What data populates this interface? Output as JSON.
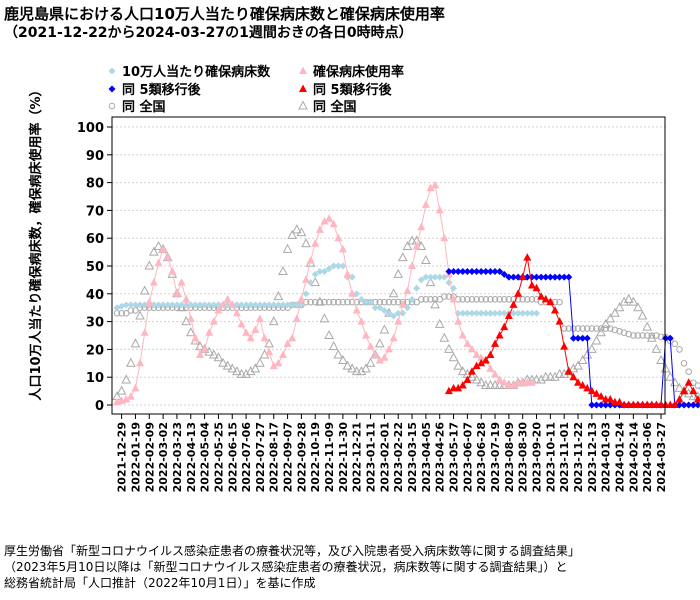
{
  "title_line1": "鹿児島県における人口10万人当たり確保病床数と確保病床使用率",
  "title_line2": "（2021-12-22から2024-03-27の1週間おきの各日0時時点）",
  "source_lines": [
    "厚生労働省「新型コロナウイルス感染症患者の療養状況等，及び入院患者受入病床数等に関する調査結果」",
    "（2023年5月10日以降は「新型コロナウイルス感染症患者の療養状況，病床数等に関する調査結果」）と",
    "総務省統計局「人口推計（2022年10月1日）」を基に作成"
  ],
  "colors": {
    "beds_pre": "#add8e6",
    "beds_post": "#0000ff",
    "usage_pre": "#ffb6c1",
    "usage_post": "#ff0000",
    "national": "#a9a9a9",
    "grid": "#d3d3d3"
  },
  "chart_data": {
    "type": "scatter",
    "ylabel": "人口10万人当たり確保病床数，確保病床使用率（%）",
    "ylim": [
      0,
      100
    ],
    "yticks": [
      0,
      10,
      20,
      30,
      40,
      50,
      60,
      70,
      80,
      90,
      100
    ],
    "x_start": "2021-12-22",
    "x_step_days": 7,
    "x_end": "2024-03-27",
    "tick_labels": [
      "2021-12-29",
      "2022-01-19",
      "2022-02-09",
      "2022-03-02",
      "2022-03-23",
      "2022-04-13",
      "2022-05-04",
      "2022-05-25",
      "2022-06-15",
      "2022-07-06",
      "2022-07-27",
      "2022-08-17",
      "2022-09-07",
      "2022-09-28",
      "2022-10-19",
      "2022-11-09",
      "2022-11-30",
      "2022-12-21",
      "2023-01-11",
      "2023-02-01",
      "2023-02-22",
      "2023-03-15",
      "2023-04-05",
      "2023-04-26",
      "2023-05-17",
      "2023-06-07",
      "2023-06-28",
      "2023-07-19",
      "2023-08-09",
      "2023-08-30",
      "2023-09-20",
      "2023-10-11",
      "2023-11-01",
      "2023-11-22",
      "2023-12-13",
      "2024-01-03",
      "2024-01-24",
      "2024-02-14",
      "2024-03-06",
      "2024-03-27"
    ],
    "grid": "horizontal dotted",
    "legend_position": "top-left",
    "legend": [
      {
        "label": "10万人当たり確保病床数",
        "marker": "diamond",
        "color": "#add8e6"
      },
      {
        "label": "同 5類移行後",
        "marker": "diamond",
        "color": "#0000ff"
      },
      {
        "label": "同 全国",
        "marker": "circle-open",
        "color": "#a9a9a9"
      },
      {
        "label": "確保病床使用率",
        "marker": "triangle",
        "color": "#ffb6c1"
      },
      {
        "label": "同 5類移行後",
        "marker": "triangle",
        "color": "#ff0000"
      },
      {
        "label": "同 全国",
        "marker": "triangle-open",
        "color": "#a9a9a9"
      }
    ],
    "series": [
      {
        "name": "10万人当たり確保病床数",
        "x_start": "2021-12-22",
        "values": [
          35,
          35.5,
          36,
          36,
          36,
          36,
          36,
          36,
          36,
          36,
          36,
          36,
          36,
          36,
          36,
          36,
          36,
          36,
          36,
          36,
          36,
          36,
          36,
          36,
          36,
          36,
          36,
          36,
          36,
          36,
          36,
          36,
          36,
          36,
          36,
          36,
          36,
          36,
          36,
          36,
          36,
          40,
          44,
          47,
          48,
          48,
          49,
          50,
          50,
          50,
          46,
          46,
          40,
          38,
          37,
          37,
          35,
          35,
          34,
          33,
          32,
          33,
          33,
          35,
          38,
          42,
          45,
          46,
          46,
          46,
          46,
          46,
          44,
          42,
          33,
          33,
          33,
          33,
          33,
          33,
          33,
          33,
          33,
          33,
          33,
          33,
          33,
          33,
          33,
          33,
          33,
          33
        ]
      },
      {
        "name": "同 5類移行後",
        "x_start": "2023-05-10",
        "values": [
          48,
          48,
          48,
          48,
          48,
          48,
          48,
          48,
          48,
          48,
          48,
          48,
          47,
          46,
          46,
          46,
          46,
          46,
          46,
          46,
          46,
          46,
          46,
          46,
          46,
          46,
          46,
          24,
          24,
          24,
          24,
          0,
          0,
          0,
          0,
          0,
          0,
          0,
          0,
          0,
          0,
          0,
          0,
          0,
          0,
          0,
          0,
          24,
          24,
          0,
          0,
          0,
          0,
          0,
          0,
          0,
          0,
          0,
          0
        ]
      },
      {
        "name": "同 全国",
        "x_start": "2021-12-22",
        "values": [
          33,
          33,
          33,
          34,
          34,
          35,
          35,
          35,
          35,
          35,
          35,
          35,
          35,
          35,
          35,
          35,
          35,
          35,
          35,
          35,
          35,
          35,
          35,
          35,
          35,
          35,
          35,
          35,
          35,
          35,
          35,
          35,
          35,
          35,
          35,
          35,
          35,
          35,
          36,
          36,
          36,
          37,
          37,
          37,
          37,
          37,
          37,
          37,
          37,
          37,
          37,
          37,
          37,
          37,
          37,
          37,
          37,
          37,
          37,
          37,
          37,
          37,
          37,
          37,
          37,
          37,
          38,
          38,
          38,
          38,
          38,
          39,
          39,
          39,
          38,
          38,
          38,
          38,
          38,
          38,
          38,
          38,
          38,
          38,
          38,
          38,
          38,
          38,
          38,
          38,
          38,
          38,
          37,
          37,
          37,
          37,
          37,
          27.5,
          27.5,
          27.5,
          27.5,
          27.5,
          27.5,
          27.5,
          27.5,
          27.5,
          27.5,
          27.5,
          27,
          26.5,
          26,
          25.5,
          25,
          25,
          25,
          25,
          25,
          25,
          24.5,
          24.5,
          23,
          22,
          20,
          15,
          12,
          8,
          7,
          6,
          5,
          5,
          4,
          4,
          4,
          4,
          4,
          4,
          5,
          8,
          12,
          16,
          16,
          15,
          13,
          12,
          10,
          8,
          7,
          5,
          5,
          4,
          4,
          4
        ]
      },
      {
        "name": "確保病床使用率",
        "x_start": "2021-12-22",
        "values": [
          1,
          1.5,
          2,
          3,
          6,
          15,
          26,
          37,
          44,
          51,
          56,
          53,
          48,
          40,
          44,
          38,
          31,
          24,
          18,
          20,
          26,
          30,
          34,
          36,
          38,
          36,
          33,
          29,
          26,
          24,
          27,
          31,
          24,
          19,
          14,
          15,
          18,
          22,
          24,
          31,
          38,
          45,
          52,
          58,
          63,
          66,
          67,
          65,
          60,
          56,
          47,
          40,
          34,
          30,
          25,
          21,
          18,
          16,
          17,
          20,
          24,
          30,
          36,
          41,
          50,
          57,
          64,
          72,
          78,
          79,
          70,
          60,
          47,
          38,
          30,
          25,
          22,
          20,
          18,
          17,
          16,
          13,
          11,
          9,
          8,
          7,
          7,
          8,
          8,
          8,
          8
        ]
      },
      {
        "name": "同 5類移行後",
        "x_start": "2023-05-10",
        "values": [
          5,
          6,
          6,
          7,
          9,
          12,
          14,
          15,
          16,
          18,
          22,
          25,
          28,
          32,
          36,
          40,
          46,
          53,
          43,
          42,
          39,
          38,
          37,
          34,
          30,
          21,
          12,
          10,
          8,
          7,
          6,
          5,
          4,
          3,
          2,
          2,
          1,
          1,
          0,
          0,
          0,
          0,
          0,
          0,
          0,
          0,
          0,
          0,
          0,
          0,
          2,
          5,
          8,
          5,
          2,
          1,
          1,
          0,
          0
        ]
      },
      {
        "name": "同 全国",
        "x_start": "2021-12-22",
        "values": [
          3,
          5,
          9,
          15,
          22,
          32,
          41,
          50,
          55,
          57,
          56,
          53,
          47,
          40,
          35,
          30,
          26,
          23,
          21,
          20,
          19,
          18,
          17,
          15,
          14,
          13,
          12,
          11,
          11,
          12,
          13,
          15,
          18,
          22,
          30,
          39,
          48,
          56,
          61,
          63,
          62,
          58,
          51,
          44,
          37,
          31,
          25,
          21,
          18,
          16,
          14,
          13,
          12,
          12,
          13,
          15,
          18,
          22,
          27,
          33,
          40,
          47,
          53,
          57,
          59,
          59,
          57,
          52,
          44,
          36,
          29,
          24,
          20,
          17,
          14,
          12,
          11,
          10,
          9,
          8,
          7,
          7,
          7,
          7,
          7,
          7,
          7,
          8,
          8,
          9,
          9,
          9,
          9,
          10,
          10,
          10,
          11,
          11,
          12,
          13,
          14,
          16,
          18,
          20,
          23,
          26,
          29,
          31,
          33,
          35,
          37,
          38,
          37,
          35,
          32,
          28,
          24,
          20,
          16,
          13,
          10,
          8,
          6,
          5,
          4,
          3,
          3,
          3,
          3,
          3,
          3,
          4,
          6,
          9,
          12,
          14,
          15,
          14,
          12,
          10,
          9,
          8,
          7,
          6,
          5,
          5,
          5
        ]
      }
    ]
  }
}
